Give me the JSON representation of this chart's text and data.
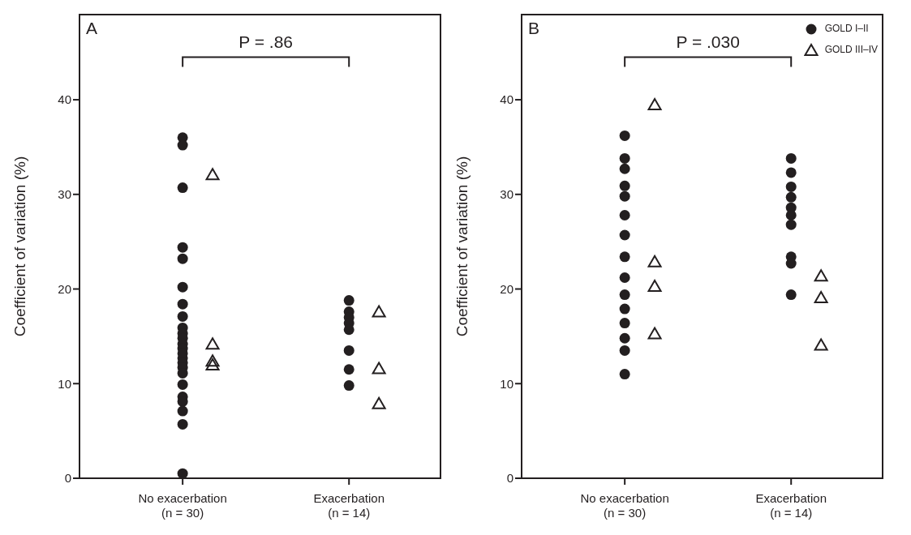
{
  "chart_data": [
    {
      "type": "scatter",
      "title": "A",
      "ylabel": "Coefficient of variation (%)",
      "categories": [
        "No exacerbation\n(n = 30)",
        "Exacerbation\n(n = 14)"
      ],
      "ylim": [
        0,
        49
      ],
      "yticks": [
        0,
        10,
        20,
        30,
        40
      ],
      "grid": false,
      "legend": false,
      "annotations": [
        "P = .86"
      ],
      "series": [
        {
          "color": "#231f20",
          "marker": "circle",
          "x": [
            "No exacerbation\n(n = 30)",
            "No exacerbation\n(n = 30)",
            "No exacerbation\n(n = 30)",
            "No exacerbation\n(n = 30)",
            "No exacerbation\n(n = 30)",
            "No exacerbation\n(n = 30)",
            "No exacerbation\n(n = 30)",
            "No exacerbation\n(n = 30)",
            "No exacerbation\n(n = 30)",
            "No exacerbation\n(n = 30)",
            "No exacerbation\n(n = 30)",
            "No exacerbation\n(n = 30)",
            "No exacerbation\n(n = 30)",
            "No exacerbation\n(n = 30)",
            "No exacerbation\n(n = 30)",
            "No exacerbation\n(n = 30)",
            "No exacerbation\n(n = 30)",
            "No exacerbation\n(n = 30)",
            "No exacerbation\n(n = 30)",
            "No exacerbation\n(n = 30)",
            "No exacerbation\n(n = 30)",
            "No exacerbation\n(n = 30)",
            "No exacerbation\n(n = 30)",
            "No exacerbation\n(n = 30)",
            "No exacerbation\n(n = 30)",
            "No exacerbation\n(n = 30)",
            "Exacerbation\n(n = 14)",
            "Exacerbation\n(n = 14)",
            "Exacerbation\n(n = 14)",
            "Exacerbation\n(n = 14)",
            "Exacerbation\n(n = 14)",
            "Exacerbation\n(n = 14)",
            "Exacerbation\n(n = 14)",
            "Exacerbation\n(n = 14)",
            "Exacerbation\n(n = 14)",
            "Exacerbation\n(n = 14)"
          ],
          "values": [
            36.0,
            35.2,
            30.7,
            24.4,
            23.2,
            20.2,
            18.4,
            17.1,
            15.9,
            15.3,
            14.8,
            14.2,
            13.7,
            13.2,
            12.7,
            12.2,
            11.7,
            11.1,
            null,
            null,
            9.9,
            8.6,
            8.1,
            7.1,
            5.7,
            0.5,
            18.8,
            17.6,
            17.0,
            16.4,
            15.7,
            null,
            null,
            13.5,
            11.5,
            9.8
          ]
        },
        {
          "color": "#231f20",
          "marker": "triangle",
          "x": [
            "No exacerbation\n(n = 30)",
            "No exacerbation\n(n = 30)",
            "No exacerbation\n(n = 30)",
            "No exacerbation\n(n = 30)",
            "Exacerbation\n(n = 14)",
            "Exacerbation\n(n = 14)",
            "Exacerbation\n(n = 14)"
          ],
          "values": [
            32.1,
            14.2,
            12.4,
            12.0,
            17.6,
            11.6,
            7.9
          ]
        }
      ]
    },
    {
      "type": "scatter",
      "title": "B",
      "ylabel": "Coefficient of variation (%)",
      "categories": [
        "No exacerbation\n(n = 30)",
        "Exacerbation\n(n = 14)"
      ],
      "ylim": [
        0,
        49
      ],
      "yticks": [
        0,
        10,
        20,
        30,
        40
      ],
      "grid": false,
      "legend": "top right",
      "annotations": [
        "P = .030"
      ],
      "series": [
        {
          "name": "GOLD I–II",
          "color": "#231f20",
          "marker": "circle",
          "x": [
            "No exacerbation\n(n = 30)",
            "No exacerbation\n(n = 30)",
            "No exacerbation\n(n = 30)",
            "No exacerbation\n(n = 30)",
            "No exacerbation\n(n = 30)",
            "No exacerbation\n(n = 30)",
            "No exacerbation\n(n = 30)",
            "No exacerbation\n(n = 30)",
            "No exacerbation\n(n = 30)",
            "No exacerbation\n(n = 30)",
            "No exacerbation\n(n = 30)",
            "No exacerbation\n(n = 30)",
            "No exacerbation\n(n = 30)",
            "No exacerbation\n(n = 30)",
            "No exacerbation\n(n = 30)",
            "Exacerbation\n(n = 14)",
            "Exacerbation\n(n = 14)",
            "Exacerbation\n(n = 14)",
            "Exacerbation\n(n = 14)",
            "Exacerbation\n(n = 14)",
            "Exacerbation\n(n = 14)",
            "Exacerbation\n(n = 14)",
            "Exacerbation\n(n = 14)",
            "Exacerbation\n(n = 14)",
            "Exacerbation\n(n = 14)"
          ],
          "values": [
            36.2,
            33.8,
            32.7,
            30.9,
            29.8,
            27.8,
            25.7,
            23.4,
            21.2,
            19.4,
            17.9,
            16.4,
            14.8,
            13.5,
            11.0,
            33.8,
            32.3,
            30.8,
            29.7,
            28.6,
            27.8,
            26.8,
            23.4,
            22.7,
            19.4
          ]
        },
        {
          "name": "GOLD III–IV",
          "color": "#231f20",
          "marker": "triangle",
          "x": [
            "No exacerbation\n(n = 30)",
            "No exacerbation\n(n = 30)",
            "No exacerbation\n(n = 30)",
            "No exacerbation\n(n = 30)",
            "Exacerbation\n(n = 14)",
            "Exacerbation\n(n = 14)",
            "Exacerbation\n(n = 14)"
          ],
          "values": [
            39.5,
            22.9,
            20.3,
            15.3,
            21.4,
            19.1,
            14.1
          ]
        }
      ]
    }
  ]
}
